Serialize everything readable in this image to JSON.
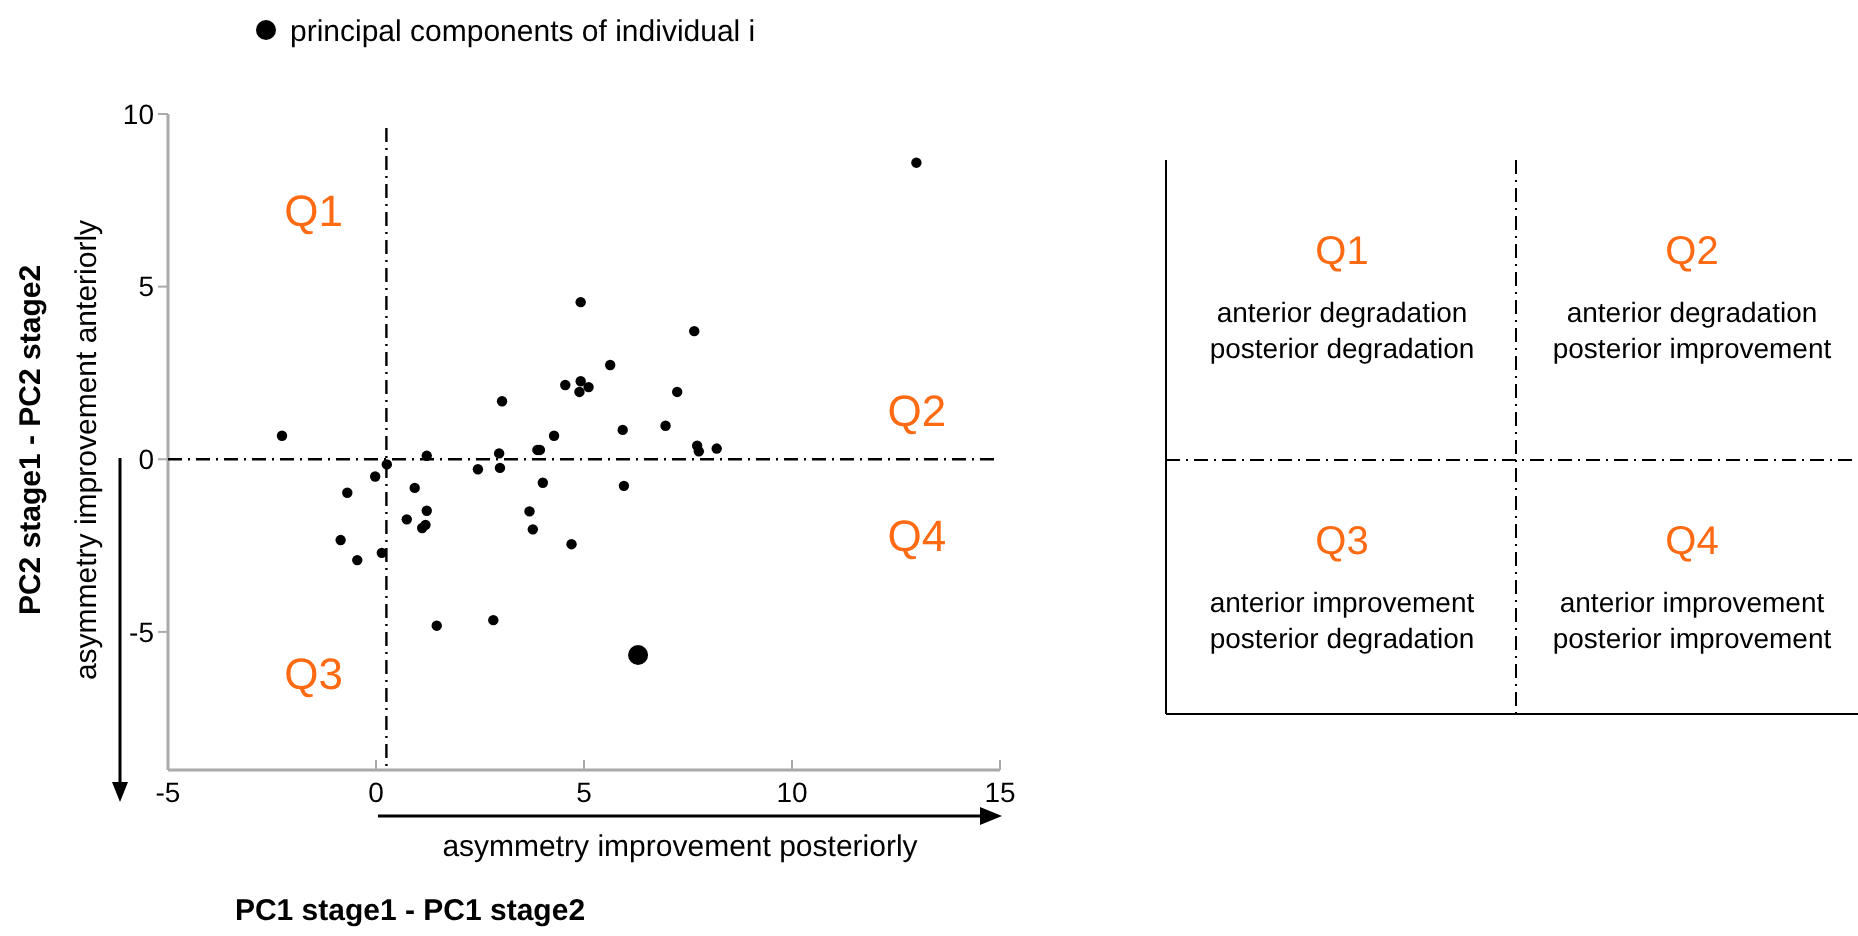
{
  "chart_data": [
    {
      "type": "scatter",
      "xlabel": "PC1 stage1 - PC1 stage2",
      "ylabel": "PC2 stage1 - PC2 stage2",
      "xlim": [
        -5,
        15
      ],
      "xticks": [
        -5,
        0,
        5,
        10,
        15
      ],
      "ylim": [
        -9,
        10
      ],
      "yticks": [
        -5,
        0,
        5,
        10
      ],
      "grid": false,
      "legend": "top",
      "marker": "circle",
      "series": [
        {
          "color": "#000000",
          "x": [
            -2.26,
            -0.69,
            -0.85,
            -0.45,
            -0.02,
            0.14,
            0.26,
            0.93,
            0.74,
            1.11,
            1.19,
            1.22,
            1.22,
            1.46,
            2.45,
            2.82,
            2.96,
            2.98,
            3.03,
            3.69,
            3.77,
            3.88,
            3.94,
            4.01,
            4.28,
            4.55,
            4.7,
            4.92,
            4.92,
            4.89,
            5.11,
            5.63,
            5.93,
            5.96,
            6.96,
            7.24,
            7.65,
            7.72,
            7.76,
            8.19,
            12.99
          ],
          "values": [
            0.68,
            -0.97,
            -2.34,
            -2.92,
            -0.5,
            -2.71,
            -0.15,
            -0.83,
            -1.74,
            -1.99,
            -1.9,
            -1.49,
            0.1,
            -4.82,
            -0.29,
            -4.66,
            0.17,
            -0.25,
            1.68,
            -1.51,
            -2.03,
            0.27,
            0.27,
            -0.68,
            0.68,
            2.15,
            -2.46,
            4.55,
            2.26,
            1.95,
            2.09,
            2.73,
            0.85,
            -0.77,
            0.97,
            1.95,
            3.71,
            0.39,
            0.23,
            0.31,
            8.59
          ]
        },
        {
          "name": "principal components of individual i",
          "color": "#000000",
          "x": [
            6.3
          ],
          "values": [
            -5.67
          ]
        }
      ],
      "ref_lines": [
        {
          "axis": "x",
          "value": 0.25,
          "line_style": "dashed",
          "color": "#000000"
        },
        {
          "axis": "y",
          "value": 0,
          "line_style": "dashed",
          "color": "#000000"
        }
      ],
      "annotations": [
        "Q1",
        "Q2",
        "Q3",
        "Q4",
        "asymmetry improvement anteriorly",
        "asymmetry improvement posteriorly"
      ]
    },
    {
      "type": "other",
      "annotations": [
        "Q1",
        "anterior degradation\nposterior degradation",
        "Q2",
        "anterior degradation\nposterior improvement",
        "Q3",
        "anterior improvement\nposterior degradation",
        "Q4",
        "anterior improvement\nposterior improvement"
      ]
    }
  ]
}
